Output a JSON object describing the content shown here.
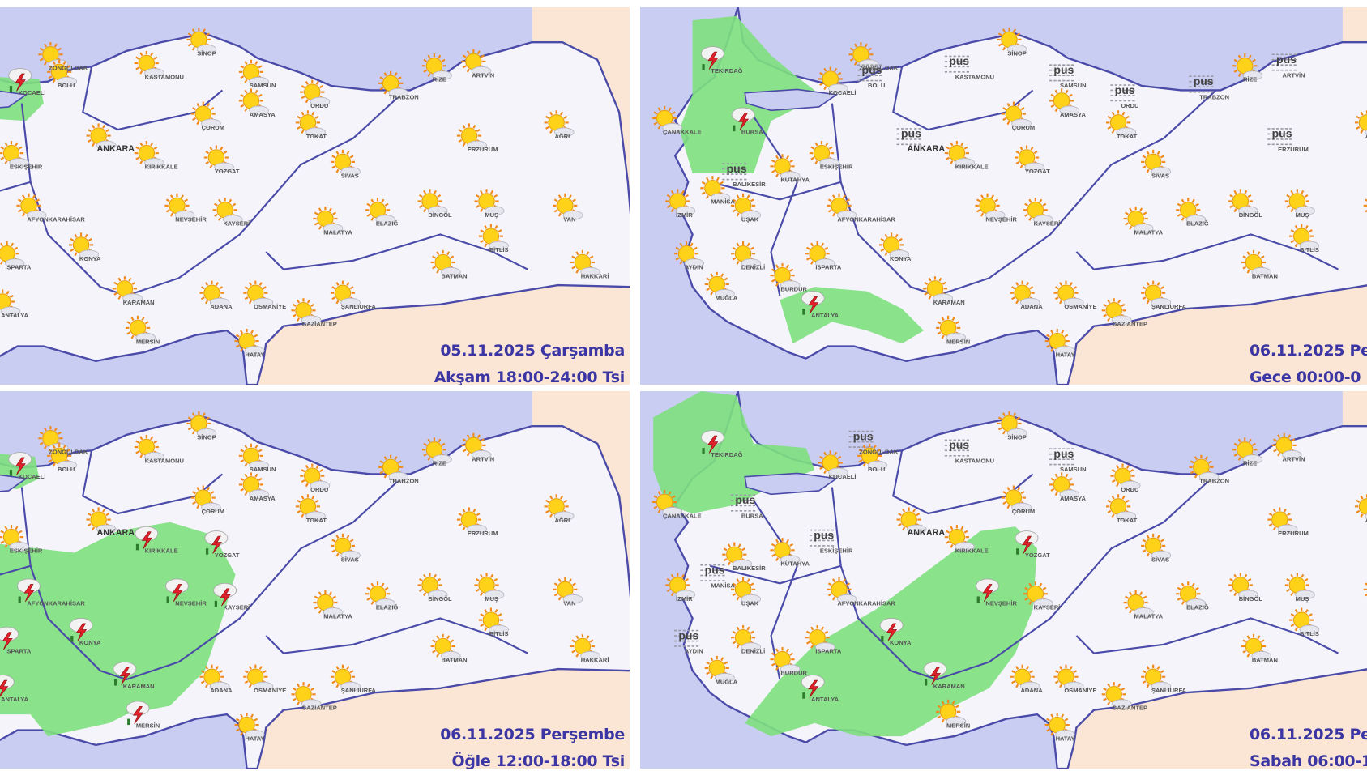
{
  "panels": [
    {
      "id": "p1",
      "date": "05.11.2025 Çarşamba",
      "period": "Akşam 18:00-24:00 Tsi",
      "fog_cities": []
    },
    {
      "id": "p2",
      "date": "06.11.2025 Pe",
      "period": "Gece 00:00-0",
      "fog_cities": [
        "BALIKESİR",
        "KASTAMONU",
        "BOLU",
        "SAMSUN",
        "ORDU",
        "TRABZON",
        "ERZURUM",
        "ARTVİN",
        "ANKARA"
      ]
    },
    {
      "id": "p3",
      "date": "06.11.2025 Perşembe",
      "period": "Öğle 12:00-18:00 Tsi",
      "fog_cities": []
    },
    {
      "id": "p4",
      "date": "06.11.2025 Pe",
      "period": "Sabah 06:00-1",
      "fog_cities": [
        "BURSA",
        "ESKİŞEHİR",
        "MANİSA",
        "AYDIN",
        "KASTAMONU",
        "SAMSUN",
        "ZONGULDAK"
      ]
    }
  ],
  "fog_label": "pus",
  "icon_types": [
    "sun-partly-cloudy-icon",
    "thunderstorm-icon",
    "fog-icon"
  ],
  "colors": {
    "sea": "#c9cdf1",
    "land": "#f4f4fa",
    "neighbor_land": "#fbe6d6",
    "rain_area": "#7ee07e",
    "border": "#4a4aa8",
    "caption": "#3b36a3"
  },
  "cities": [
    "ANKARA",
    "ZONGULDAK",
    "BOLU",
    "KASTAMONU",
    "SİNOP",
    "SAMSUN",
    "ORDU",
    "TRABZON",
    "RİZE",
    "ARTVİN",
    "ERZURUM",
    "AĞRI",
    "KIRIKKALE",
    "YOZGAT",
    "ÇORUM",
    "AMASYA",
    "TOKAT",
    "SİVAS",
    "KAYSERİ",
    "NEVŞEHİR",
    "KONYA",
    "KARAMAN",
    "ADANA",
    "MERSİN",
    "OSMANİYE",
    "MALATYA",
    "ELAZIĞ",
    "BİNGÖL",
    "MUŞ",
    "BİTLİS",
    "BATMAN",
    "ŞANLIURFA",
    "GAZİANTEP",
    "VAN",
    "HAKKARİ",
    "ESKİŞEHİR",
    "ÇANAKKALE",
    "BALIKESİR",
    "BURSA",
    "MANİSA",
    "İZMİR",
    "AYDIN",
    "MUĞLA",
    "DENİZLİ",
    "UŞAK",
    "KÜTAHYA",
    "AFYONKARAHİSAR",
    "ISPARTA",
    "BURDUR",
    "ANTALYA",
    "TEKİRDAĞ",
    "KOCAELİ",
    "HATAY"
  ]
}
